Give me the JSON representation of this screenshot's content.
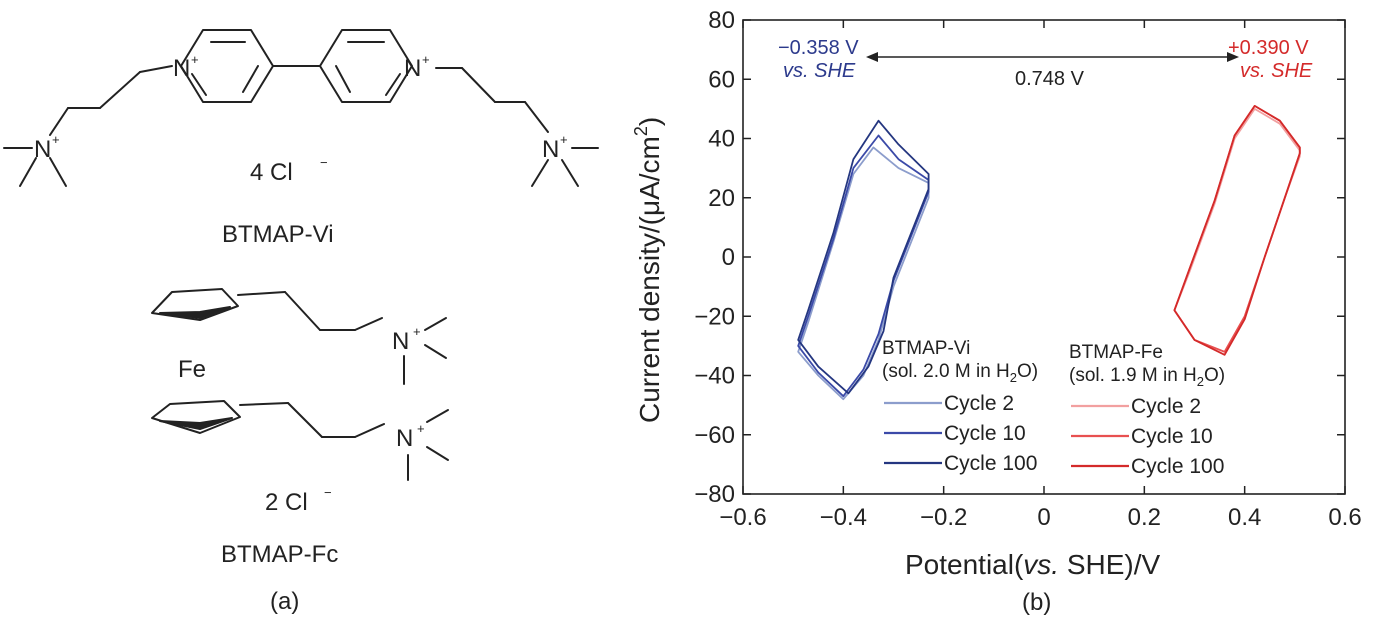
{
  "panel_a": {
    "counterion_vi": "4 Cl",
    "name_vi": "BTMAP-Vi",
    "iron": "Fe",
    "counterion_fc": "2 Cl",
    "name_fc": "BTMAP-Fc",
    "panel_label": "(a)",
    "atom_n": "N",
    "charge_plus": "+",
    "charge_minus": "−"
  },
  "panel_b": {
    "panel_label": "(b)",
    "left_potential": "−0.358 V",
    "left_ref": "vs. SHE",
    "right_potential": "+0.390 V",
    "right_ref": "vs. SHE",
    "gap_label": "0.748 V",
    "vi_name": "BTMAP-Vi",
    "vi_sol": "(sol. 2.0 M in H",
    "vi_sol_tail": "O)",
    "fe_name": "BTMAP-Fe",
    "fe_sol": "(sol. 1.9 M in H",
    "fe_sol_tail": "O)",
    "sub2": "2",
    "ylabel_main": "Current density/(μA/cm",
    "ylabel_tail": ")",
    "xlabel_pre": "Potential(",
    "xlabel_italic": "vs.",
    "xlabel_post": " SHE)/V"
  },
  "colors": {
    "vi": [
      "#8c9dcc",
      "#3b4aa8",
      "#243680"
    ],
    "fe": [
      "#f2a0a0",
      "#e85050",
      "#d42a2a"
    ]
  },
  "chart_data": {
    "type": "line",
    "title": "",
    "xlabel": "Potential(vs. SHE)/V",
    "ylabel": "Current density/(μA/cm2)",
    "xlim": [
      -0.6,
      0.6
    ],
    "ylim": [
      -80,
      80
    ],
    "xticks": [
      "−0.6",
      "−0.4",
      "−0.2",
      "0",
      "0.2",
      "0.4",
      "0.6"
    ],
    "yticks": [
      "80",
      "60",
      "40",
      "20",
      "0",
      "−20",
      "−40",
      "−60",
      "−80"
    ],
    "legend_placement": "bottom",
    "series": [
      {
        "group": "BTMAP-Vi",
        "name": "Cycle 2",
        "x": [
          -0.49,
          -0.45,
          -0.4,
          -0.36,
          -0.33,
          -0.3,
          -0.23,
          -0.23,
          -0.29,
          -0.34,
          -0.38,
          -0.42,
          -0.47,
          -0.49
        ],
        "y": [
          -32,
          -40,
          -48,
          -40,
          -28,
          -10,
          20,
          25,
          30,
          37,
          28,
          5,
          -22,
          -32
        ]
      },
      {
        "group": "BTMAP-Vi",
        "name": "Cycle 10",
        "x": [
          -0.49,
          -0.45,
          -0.4,
          -0.36,
          -0.33,
          -0.3,
          -0.23,
          -0.23,
          -0.29,
          -0.33,
          -0.38,
          -0.42,
          -0.47,
          -0.49
        ],
        "y": [
          -30,
          -39,
          -47,
          -38,
          -26,
          -8,
          22,
          26,
          33,
          41,
          30,
          6,
          -20,
          -30
        ]
      },
      {
        "group": "BTMAP-Vi",
        "name": "Cycle 100",
        "x": [
          -0.49,
          -0.45,
          -0.39,
          -0.35,
          -0.32,
          -0.3,
          -0.23,
          -0.23,
          -0.29,
          -0.33,
          -0.38,
          -0.42,
          -0.47,
          -0.49
        ],
        "y": [
          -28,
          -37,
          -46,
          -37,
          -25,
          -7,
          23,
          28,
          38,
          46,
          33,
          8,
          -18,
          -28
        ]
      },
      {
        "group": "BTMAP-Fe",
        "name": "Cycle 2",
        "x": [
          0.26,
          0.3,
          0.36,
          0.4,
          0.44,
          0.48,
          0.51,
          0.51,
          0.47,
          0.42,
          0.38,
          0.34,
          0.29,
          0.26
        ],
        "y": [
          -18,
          -28,
          -32,
          -20,
          0,
          20,
          34,
          36,
          45,
          50,
          40,
          18,
          -5,
          -18
        ]
      },
      {
        "group": "BTMAP-Fe",
        "name": "Cycle 10",
        "x": [
          0.26,
          0.3,
          0.36,
          0.4,
          0.44,
          0.48,
          0.51,
          0.51,
          0.47,
          0.42,
          0.38,
          0.34,
          0.29,
          0.26
        ],
        "y": [
          -18,
          -28,
          -32,
          -20,
          0,
          20,
          35,
          37,
          46,
          51,
          41,
          19,
          -4,
          -18
        ]
      },
      {
        "group": "BTMAP-Fe",
        "name": "Cycle 100",
        "x": [
          0.26,
          0.3,
          0.36,
          0.4,
          0.44,
          0.48,
          0.51,
          0.51,
          0.47,
          0.42,
          0.38,
          0.34,
          0.29,
          0.26
        ],
        "y": [
          -18,
          -28,
          -33,
          -21,
          0,
          20,
          35,
          37,
          46,
          51,
          41,
          19,
          -4,
          -18
        ]
      }
    ],
    "annotations": [
      {
        "text": "−0.358 V",
        "x": -0.358
      },
      {
        "text": "+0.390 V",
        "x": 0.39
      },
      {
        "text": "0.748 V"
      }
    ]
  }
}
